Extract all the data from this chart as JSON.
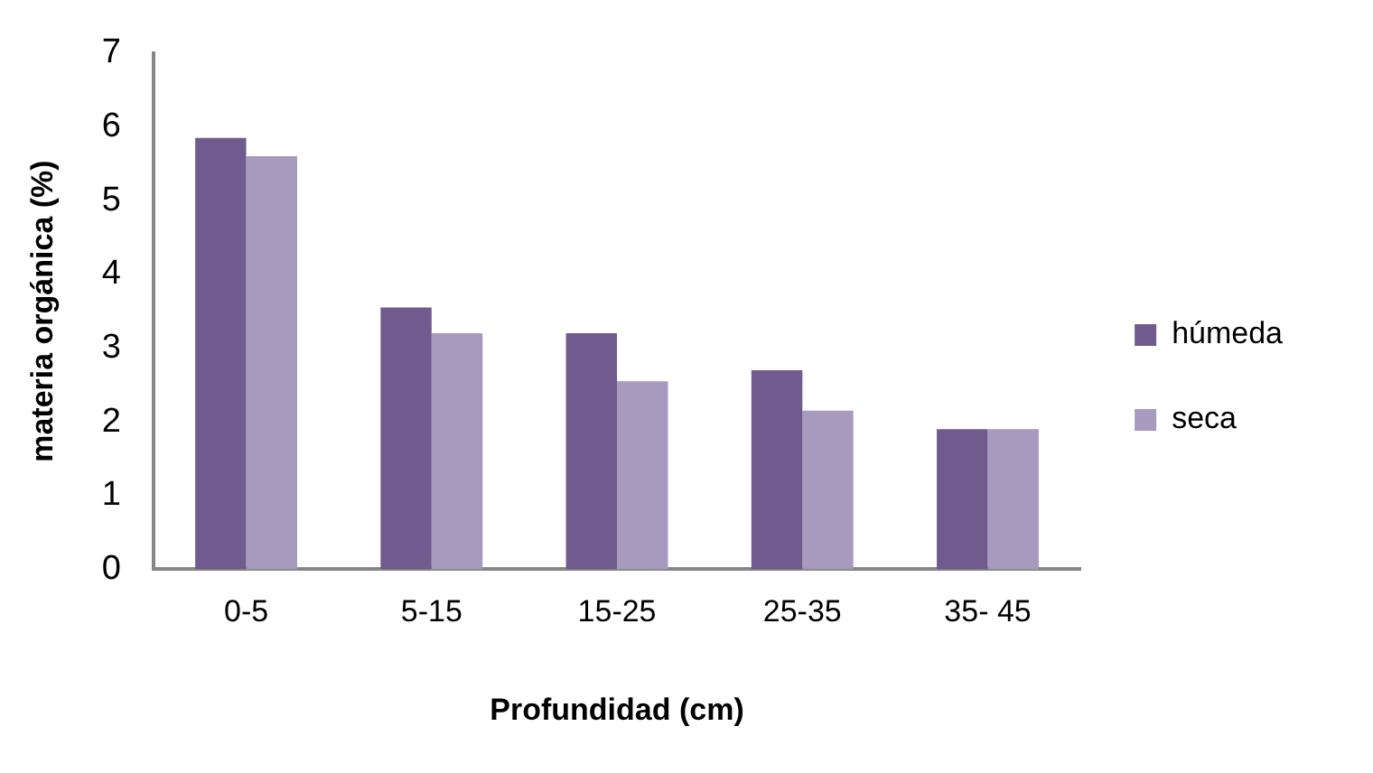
{
  "chart_data": {
    "type": "bar",
    "xlabel": "Profundidad (cm)",
    "ylabel": "materia orgánica (%)",
    "categories": [
      "0-5",
      "5-15",
      "15-25",
      "25-35",
      "35- 45"
    ],
    "series": [
      {
        "name": "húmeda",
        "color": "#705a8e",
        "values": [
          5.85,
          3.55,
          3.2,
          2.7,
          1.9
        ]
      },
      {
        "name": "seca",
        "color": "#a899bf",
        "values": [
          5.6,
          3.2,
          2.55,
          2.15,
          1.9
        ]
      }
    ],
    "ylim": [
      0,
      7
    ],
    "yticks": [
      0,
      1,
      2,
      3,
      4,
      5,
      6,
      7
    ],
    "grid": false,
    "legend": "right"
  }
}
